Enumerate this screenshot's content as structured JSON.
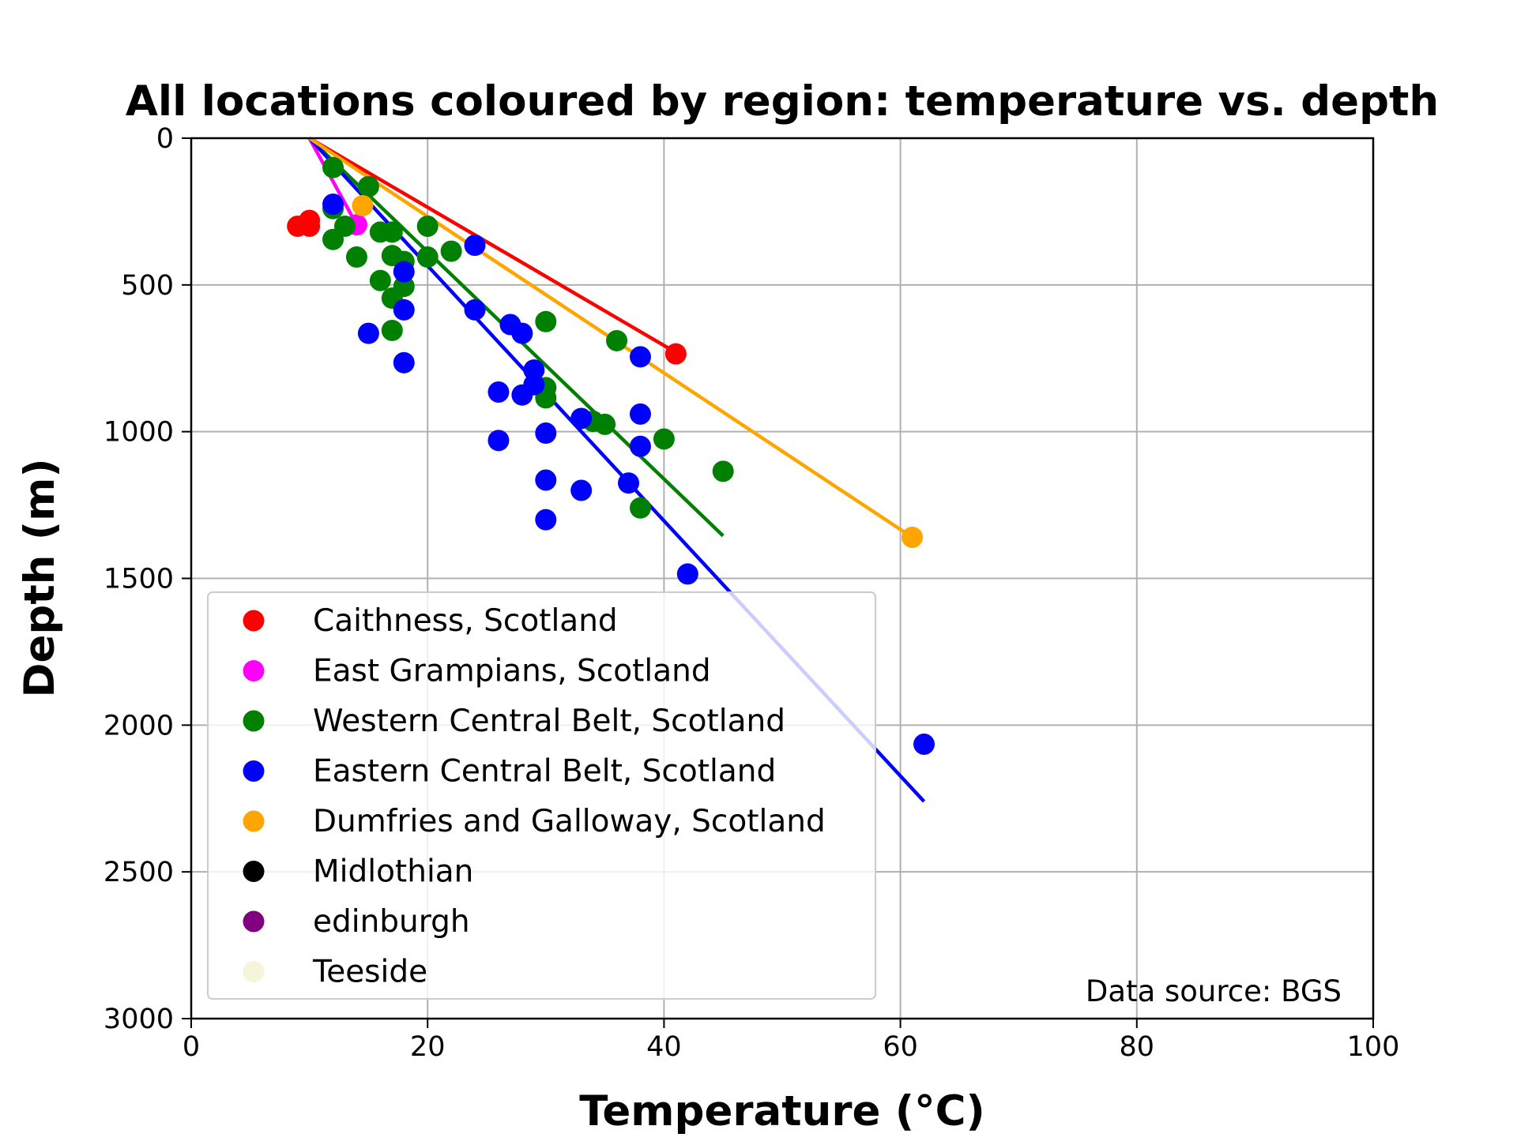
{
  "chart_data": {
    "type": "scatter",
    "title": "All locations coloured by region: temperature vs. depth",
    "xlabel": "Temperature (°C)",
    "ylabel": "Depth (m)",
    "xlim": [
      0,
      100
    ],
    "ylim": [
      3000,
      0
    ],
    "y_axis_inverted": true,
    "grid": true,
    "x_ticks": [
      "0",
      "20",
      "40",
      "60",
      "80",
      "100"
    ],
    "y_ticks": [
      "0",
      "500",
      "1000",
      "1500",
      "2000",
      "2500",
      "3000"
    ],
    "x_tick_values": [
      0,
      20,
      40,
      60,
      80,
      100
    ],
    "y_tick_values": [
      0,
      500,
      1000,
      1500,
      2000,
      2500,
      3000
    ],
    "legend_position": "lower-left",
    "annotation": "Data source: BGS",
    "series": [
      {
        "name": "Caithness, Scotland",
        "color": "#ff0000",
        "points": [
          [
            9,
            300
          ],
          [
            10,
            280
          ],
          [
            10,
            300
          ],
          [
            41,
            735
          ]
        ],
        "trend_line": [
          [
            10,
            0
          ],
          [
            41,
            730
          ]
        ]
      },
      {
        "name": "East Grampians, Scotland",
        "color": "#ff00ff",
        "points": [
          [
            14,
            295
          ]
        ],
        "trend_line": [
          [
            10,
            0
          ],
          [
            14,
            295
          ]
        ]
      },
      {
        "name": "Western Central Belt, Scotland",
        "color": "#008000",
        "points": [
          [
            12,
            100
          ],
          [
            12,
            240
          ],
          [
            12,
            345
          ],
          [
            13,
            300
          ],
          [
            14,
            405
          ],
          [
            15,
            165
          ],
          [
            16,
            320
          ],
          [
            16,
            485
          ],
          [
            17,
            320
          ],
          [
            17,
            400
          ],
          [
            17,
            545
          ],
          [
            17,
            655
          ],
          [
            18,
            420
          ],
          [
            18,
            505
          ],
          [
            20,
            300
          ],
          [
            20,
            405
          ],
          [
            22,
            385
          ],
          [
            30,
            625
          ],
          [
            30,
            850
          ],
          [
            30,
            885
          ],
          [
            34,
            965
          ],
          [
            35,
            975
          ],
          [
            36,
            690
          ],
          [
            38,
            1260
          ],
          [
            40,
            1025
          ],
          [
            45,
            1135
          ]
        ],
        "trend_line": [
          [
            10,
            0
          ],
          [
            45,
            1355
          ]
        ]
      },
      {
        "name": "Eastern Central Belt, Scotland",
        "color": "#0000ff",
        "points": [
          [
            12,
            225
          ],
          [
            15,
            665
          ],
          [
            18,
            455
          ],
          [
            18,
            585
          ],
          [
            18,
            765
          ],
          [
            24,
            365
          ],
          [
            24,
            585
          ],
          [
            26,
            865
          ],
          [
            26,
            1030
          ],
          [
            27,
            635
          ],
          [
            28,
            665
          ],
          [
            28,
            875
          ],
          [
            29,
            790
          ],
          [
            29,
            840
          ],
          [
            30,
            1005
          ],
          [
            30,
            1165
          ],
          [
            30,
            1300
          ],
          [
            33,
            955
          ],
          [
            33,
            1200
          ],
          [
            37,
            1175
          ],
          [
            38,
            745
          ],
          [
            38,
            940
          ],
          [
            38,
            1050
          ],
          [
            42,
            1485
          ],
          [
            62,
            2065
          ]
        ],
        "trend_line": [
          [
            10,
            0
          ],
          [
            62,
            2260
          ]
        ]
      },
      {
        "name": "Dumfries and Galloway, Scotland",
        "color": "#ffa500",
        "points": [
          [
            14.5,
            230
          ],
          [
            61,
            1360
          ]
        ],
        "trend_line": [
          [
            10,
            0
          ],
          [
            61,
            1360
          ]
        ]
      },
      {
        "name": "Midlothian",
        "color": "#000000",
        "points": []
      },
      {
        "name": "edinburgh",
        "color": "#800080",
        "points": []
      },
      {
        "name": "Teeside",
        "color": "#f5f5dc",
        "points": []
      }
    ]
  }
}
